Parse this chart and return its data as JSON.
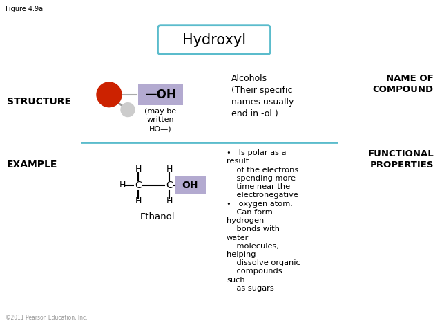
{
  "title": "Hydroxyl",
  "figure_label": "Figure 4.9a",
  "copyright": "©2011 Pearson Education, Inc.",
  "bg_color": "#ffffff",
  "box_color": "#5bbccc",
  "highlight_color": "#b3aad0",
  "structure_label": "STRUCTURE",
  "example_label": "EXAMPLE",
  "name_of_compound_label": "NAME OF\nCOMPOUND",
  "functional_properties_label": "FUNCTIONAL\nPROPERTIES",
  "oh_label": "—OH",
  "may_be_written": "(may be\nwritten\nHO—)",
  "alcohol_text": "Alcohols\n(Their specific\nnames usually\nend in -ol.)",
  "ethanol_label": "Ethanol",
  "func_line1": "•   Is polar as a",
  "func_line2": "result",
  "func_line3": "    of the electrons",
  "func_line4": "    spending more",
  "func_line5": "    time near the",
  "func_line6": "    electronegative",
  "func_line7": "•   oxygen atom.",
  "func_line8": "    Can form",
  "func_line9": "hydrogen",
  "func_line10": "    bonds with",
  "func_line11": "water",
  "func_line12": "    molecules,",
  "func_line13": "helping",
  "func_line14": "    dissolve organic",
  "func_line15": "    compounds",
  "func_line16": "such",
  "func_line17": "    as sugars"
}
